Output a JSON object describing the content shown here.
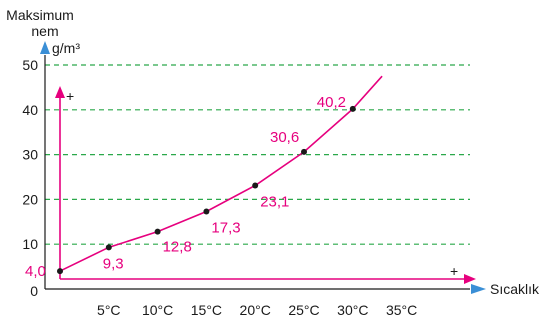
{
  "colors": {
    "axis": "#1a1a1a",
    "accent": "#e6007e",
    "grid": "#2aa84a",
    "axis_arrow": "#3a8fd6",
    "point": "#1a1a1a",
    "background": "#ffffff"
  },
  "chart_data": {
    "type": "line",
    "ylabel_line1": "Maksimum",
    "ylabel_line2": "nem",
    "yunit": "g/m³",
    "xlabel": "Sıcaklık",
    "ylim": [
      0,
      50
    ],
    "xlim": [
      0,
      37
    ],
    "grid": "horizontal dashed",
    "y_ticks": [
      {
        "value": 0,
        "label": "0"
      },
      {
        "value": 10,
        "label": "10"
      },
      {
        "value": 20,
        "label": "20"
      },
      {
        "value": 30,
        "label": "30"
      },
      {
        "value": 40,
        "label": "40"
      },
      {
        "value": 50,
        "label": "50"
      }
    ],
    "x_ticks": [
      {
        "value": 5,
        "label": "5°C"
      },
      {
        "value": 10,
        "label": "10°C"
      },
      {
        "value": 15,
        "label": "15°C"
      },
      {
        "value": 20,
        "label": "20°C"
      },
      {
        "value": 25,
        "label": "25°C"
      },
      {
        "value": 30,
        "label": "30°C"
      },
      {
        "value": 35,
        "label": "35°C"
      }
    ],
    "points": [
      {
        "x": 0,
        "y": 4.0,
        "label": "4,0"
      },
      {
        "x": 5,
        "y": 9.3,
        "label": "9,3"
      },
      {
        "x": 10,
        "y": 12.8,
        "label": "12,8"
      },
      {
        "x": 15,
        "y": 17.3,
        "label": "17,3"
      },
      {
        "x": 20,
        "y": 23.1,
        "label": "23,1"
      },
      {
        "x": 25,
        "y": 30.6,
        "label": "30,6"
      },
      {
        "x": 30,
        "y": 40.2,
        "label": "40,2"
      }
    ],
    "line_end": {
      "x": 33,
      "y": 47.5
    },
    "inner_axes": {
      "x_sign": "+",
      "y_sign": "+"
    }
  }
}
